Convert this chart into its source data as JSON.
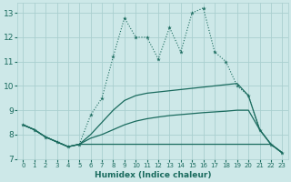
{
  "xlabel": "Humidex (Indice chaleur)",
  "bg_color": "#cde8e8",
  "grid_color": "#aacfcf",
  "line_color": "#1a6b5e",
  "xlim": [
    -0.5,
    23.5
  ],
  "ylim": [
    7,
    13.4
  ],
  "yticks": [
    7,
    8,
    9,
    10,
    11,
    12,
    13
  ],
  "xticks": [
    0,
    1,
    2,
    3,
    4,
    5,
    6,
    7,
    8,
    9,
    10,
    11,
    12,
    13,
    14,
    15,
    16,
    17,
    18,
    19,
    20,
    21,
    22,
    23
  ],
  "jagged_x": [
    0,
    1,
    2,
    3,
    4,
    5,
    6,
    7,
    8,
    9,
    10,
    11,
    12,
    13,
    14,
    15,
    16,
    17,
    18,
    19,
    20,
    21,
    22,
    23
  ],
  "jagged_y": [
    8.4,
    8.2,
    7.9,
    7.7,
    7.5,
    7.6,
    8.8,
    9.5,
    11.2,
    12.8,
    12.0,
    12.0,
    11.1,
    12.4,
    11.4,
    13.0,
    13.2,
    11.4,
    11.0,
    10.0,
    9.6,
    8.2,
    7.6,
    7.25
  ],
  "upper_x": [
    0,
    1,
    2,
    3,
    4,
    5,
    6,
    7,
    8,
    9,
    10,
    11,
    12,
    13,
    14,
    15,
    16,
    17,
    18,
    19,
    20,
    21,
    22,
    23
  ],
  "upper_y": [
    8.4,
    8.2,
    7.9,
    7.7,
    7.5,
    7.6,
    8.0,
    8.5,
    9.0,
    9.4,
    9.6,
    9.7,
    9.75,
    9.8,
    9.85,
    9.9,
    9.95,
    10.0,
    10.05,
    10.1,
    9.6,
    8.2,
    7.6,
    7.25
  ],
  "mid_x": [
    0,
    1,
    2,
    3,
    4,
    5,
    6,
    7,
    8,
    9,
    10,
    11,
    12,
    13,
    14,
    15,
    16,
    17,
    18,
    19,
    20,
    21,
    22,
    23
  ],
  "mid_y": [
    8.4,
    8.2,
    7.9,
    7.7,
    7.5,
    7.6,
    7.85,
    8.0,
    8.2,
    8.4,
    8.55,
    8.65,
    8.72,
    8.78,
    8.82,
    8.86,
    8.9,
    8.93,
    8.96,
    9.0,
    9.0,
    8.2,
    7.6,
    7.25
  ],
  "lower_x": [
    0,
    1,
    2,
    3,
    4,
    5,
    6,
    7,
    8,
    9,
    10,
    11,
    12,
    13,
    14,
    15,
    16,
    17,
    18,
    19,
    20,
    21,
    22,
    23
  ],
  "lower_y": [
    8.4,
    8.2,
    7.9,
    7.7,
    7.5,
    7.6,
    7.6,
    7.6,
    7.6,
    7.6,
    7.6,
    7.6,
    7.6,
    7.6,
    7.6,
    7.6,
    7.6,
    7.6,
    7.6,
    7.6,
    7.6,
    7.6,
    7.6,
    7.25
  ]
}
